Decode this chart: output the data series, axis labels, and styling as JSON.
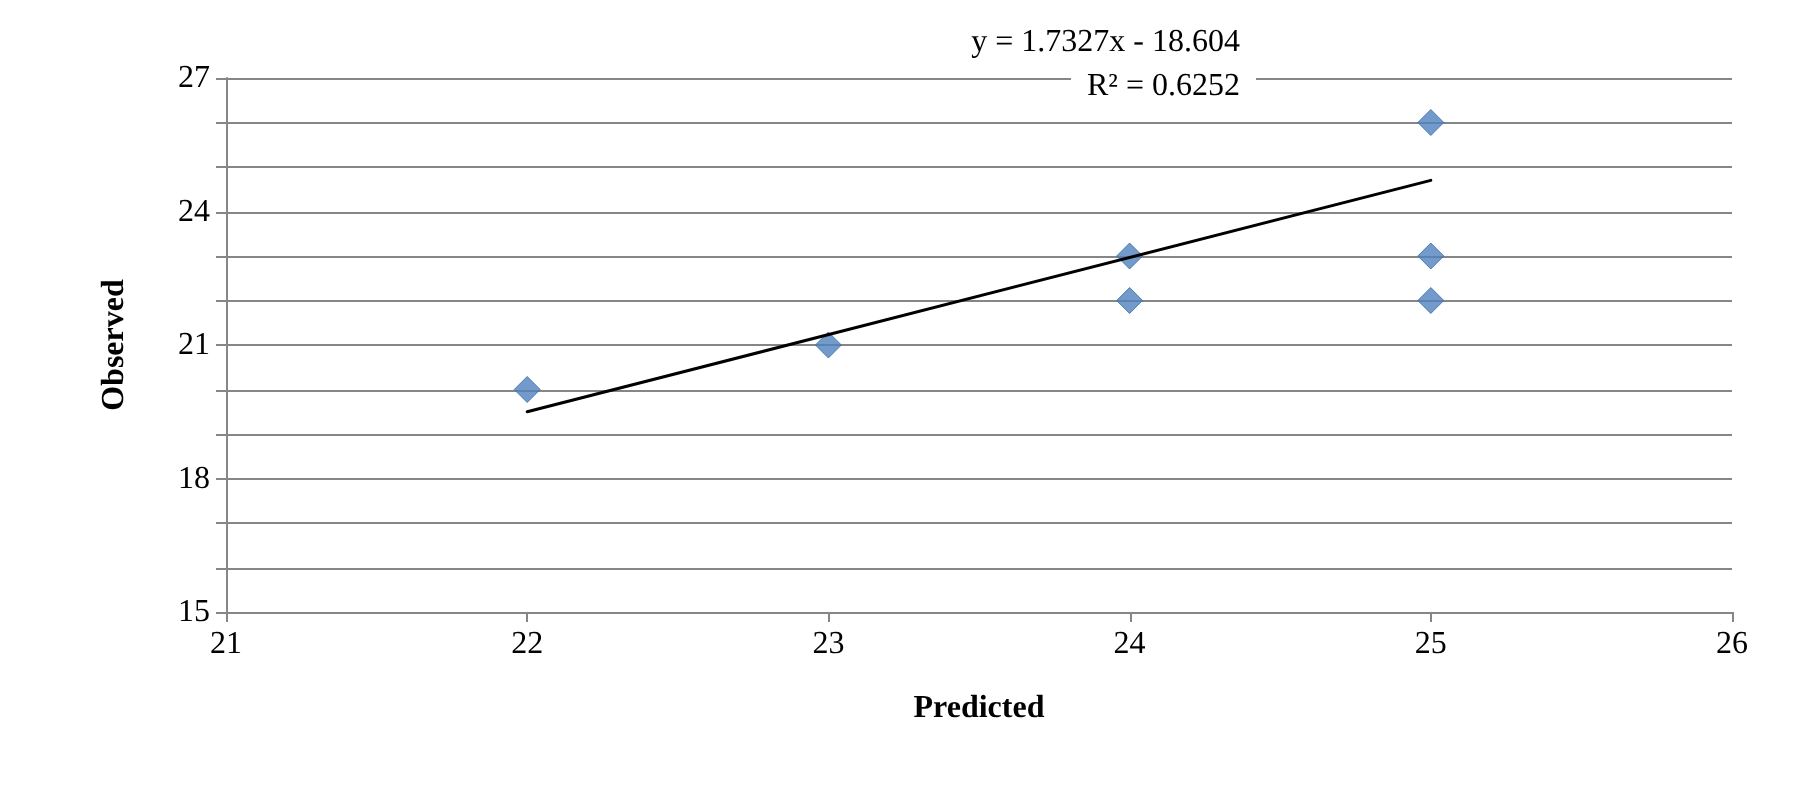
{
  "chart_data": {
    "type": "scatter",
    "xlabel": "Predicted",
    "ylabel": "Observed",
    "xlim": [
      21,
      26
    ],
    "xticks": [
      21,
      22,
      23,
      24,
      25,
      26
    ],
    "ylim": [
      15,
      27
    ],
    "yticks": [
      15,
      {
        "value": 16,
        "label": null
      },
      {
        "value": 17,
        "label": null
      },
      18,
      {
        "value": 19,
        "label": null
      },
      {
        "value": 20,
        "label": null
      },
      21,
      {
        "value": 22,
        "label": null
      },
      {
        "value": 23,
        "label": null
      },
      24,
      {
        "value": 25,
        "label": null
      },
      {
        "value": 26,
        "label": null
      },
      27
    ],
    "grid": "y",
    "marker": "diamond",
    "annotations": [
      "y = 1.7327x - 18.604",
      "R² = 0.6252"
    ],
    "series": [
      {
        "color": "#4f81bd",
        "x": [
          22,
          23,
          24,
          24,
          25,
          25,
          25
        ],
        "values": [
          20,
          21,
          23,
          22,
          26,
          23,
          22
        ]
      },
      {
        "type": "line",
        "color": "#000000",
        "marker": "none",
        "line_style": "solid",
        "x": [
          22,
          25
        ],
        "values": [
          19.5,
          24.7
        ]
      }
    ]
  }
}
